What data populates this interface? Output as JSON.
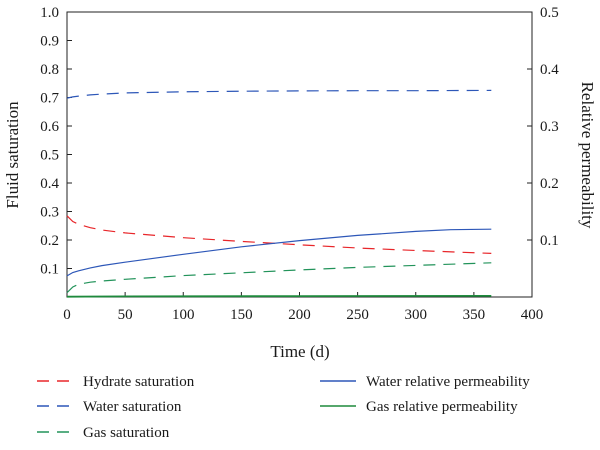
{
  "chart_data": {
    "type": "line",
    "title": "",
    "xlabel": "Time (d)",
    "ylabel": "Fluid saturation",
    "y2label": "Relative permeability",
    "xlim": [
      0,
      400
    ],
    "ylim": [
      0,
      1
    ],
    "y2lim": [
      0,
      0.5
    ],
    "xticks": [
      "0",
      "50",
      "100",
      "150",
      "200",
      "250",
      "300",
      "350",
      "400"
    ],
    "yticks": [
      "0.1",
      "0.2",
      "0.3",
      "0.4",
      "0.5",
      "0.6",
      "0.7",
      "0.8",
      "0.9",
      "1.0"
    ],
    "y2ticks": [
      "0.1",
      "0.2",
      "0.3",
      "0.4",
      "0.5"
    ],
    "grid": false,
    "legend_position": "bottom",
    "series": [
      {
        "name": "Hydrate saturation",
        "axis": "left",
        "style": "dashed",
        "color": "#e8262a",
        "x": [
          0,
          5,
          10,
          20,
          30,
          50,
          100,
          150,
          200,
          250,
          300,
          365
        ],
        "y": [
          0.285,
          0.265,
          0.255,
          0.243,
          0.235,
          0.225,
          0.208,
          0.195,
          0.183,
          0.172,
          0.163,
          0.153
        ]
      },
      {
        "name": "Water saturation",
        "axis": "left",
        "style": "dashed",
        "color": "#2d57b8",
        "x": [
          0,
          5,
          10,
          20,
          30,
          50,
          100,
          150,
          200,
          250,
          300,
          365
        ],
        "y": [
          0.698,
          0.702,
          0.705,
          0.709,
          0.712,
          0.716,
          0.72,
          0.722,
          0.723,
          0.724,
          0.724,
          0.725
        ]
      },
      {
        "name": "Gas saturation",
        "axis": "left",
        "style": "dashed",
        "color": "#22935a",
        "x": [
          0,
          5,
          10,
          20,
          30,
          50,
          100,
          150,
          200,
          250,
          300,
          365
        ],
        "y": [
          0.015,
          0.035,
          0.045,
          0.052,
          0.056,
          0.062,
          0.075,
          0.085,
          0.095,
          0.104,
          0.111,
          0.12
        ]
      },
      {
        "name": "Water relative permeability",
        "axis": "right",
        "style": "solid",
        "color": "#2d57b8",
        "x": [
          0,
          5,
          10,
          20,
          30,
          50,
          100,
          150,
          200,
          250,
          300,
          330,
          365
        ],
        "y": [
          0.037,
          0.043,
          0.046,
          0.051,
          0.055,
          0.061,
          0.075,
          0.088,
          0.099,
          0.108,
          0.115,
          0.118,
          0.119
        ]
      },
      {
        "name": "Gas relative permeability",
        "axis": "right",
        "style": "solid",
        "color": "#1e8a3c",
        "x": [
          0,
          50,
          100,
          200,
          365
        ],
        "y": [
          0.0005,
          0.001,
          0.0013,
          0.0016,
          0.002
        ]
      }
    ]
  }
}
